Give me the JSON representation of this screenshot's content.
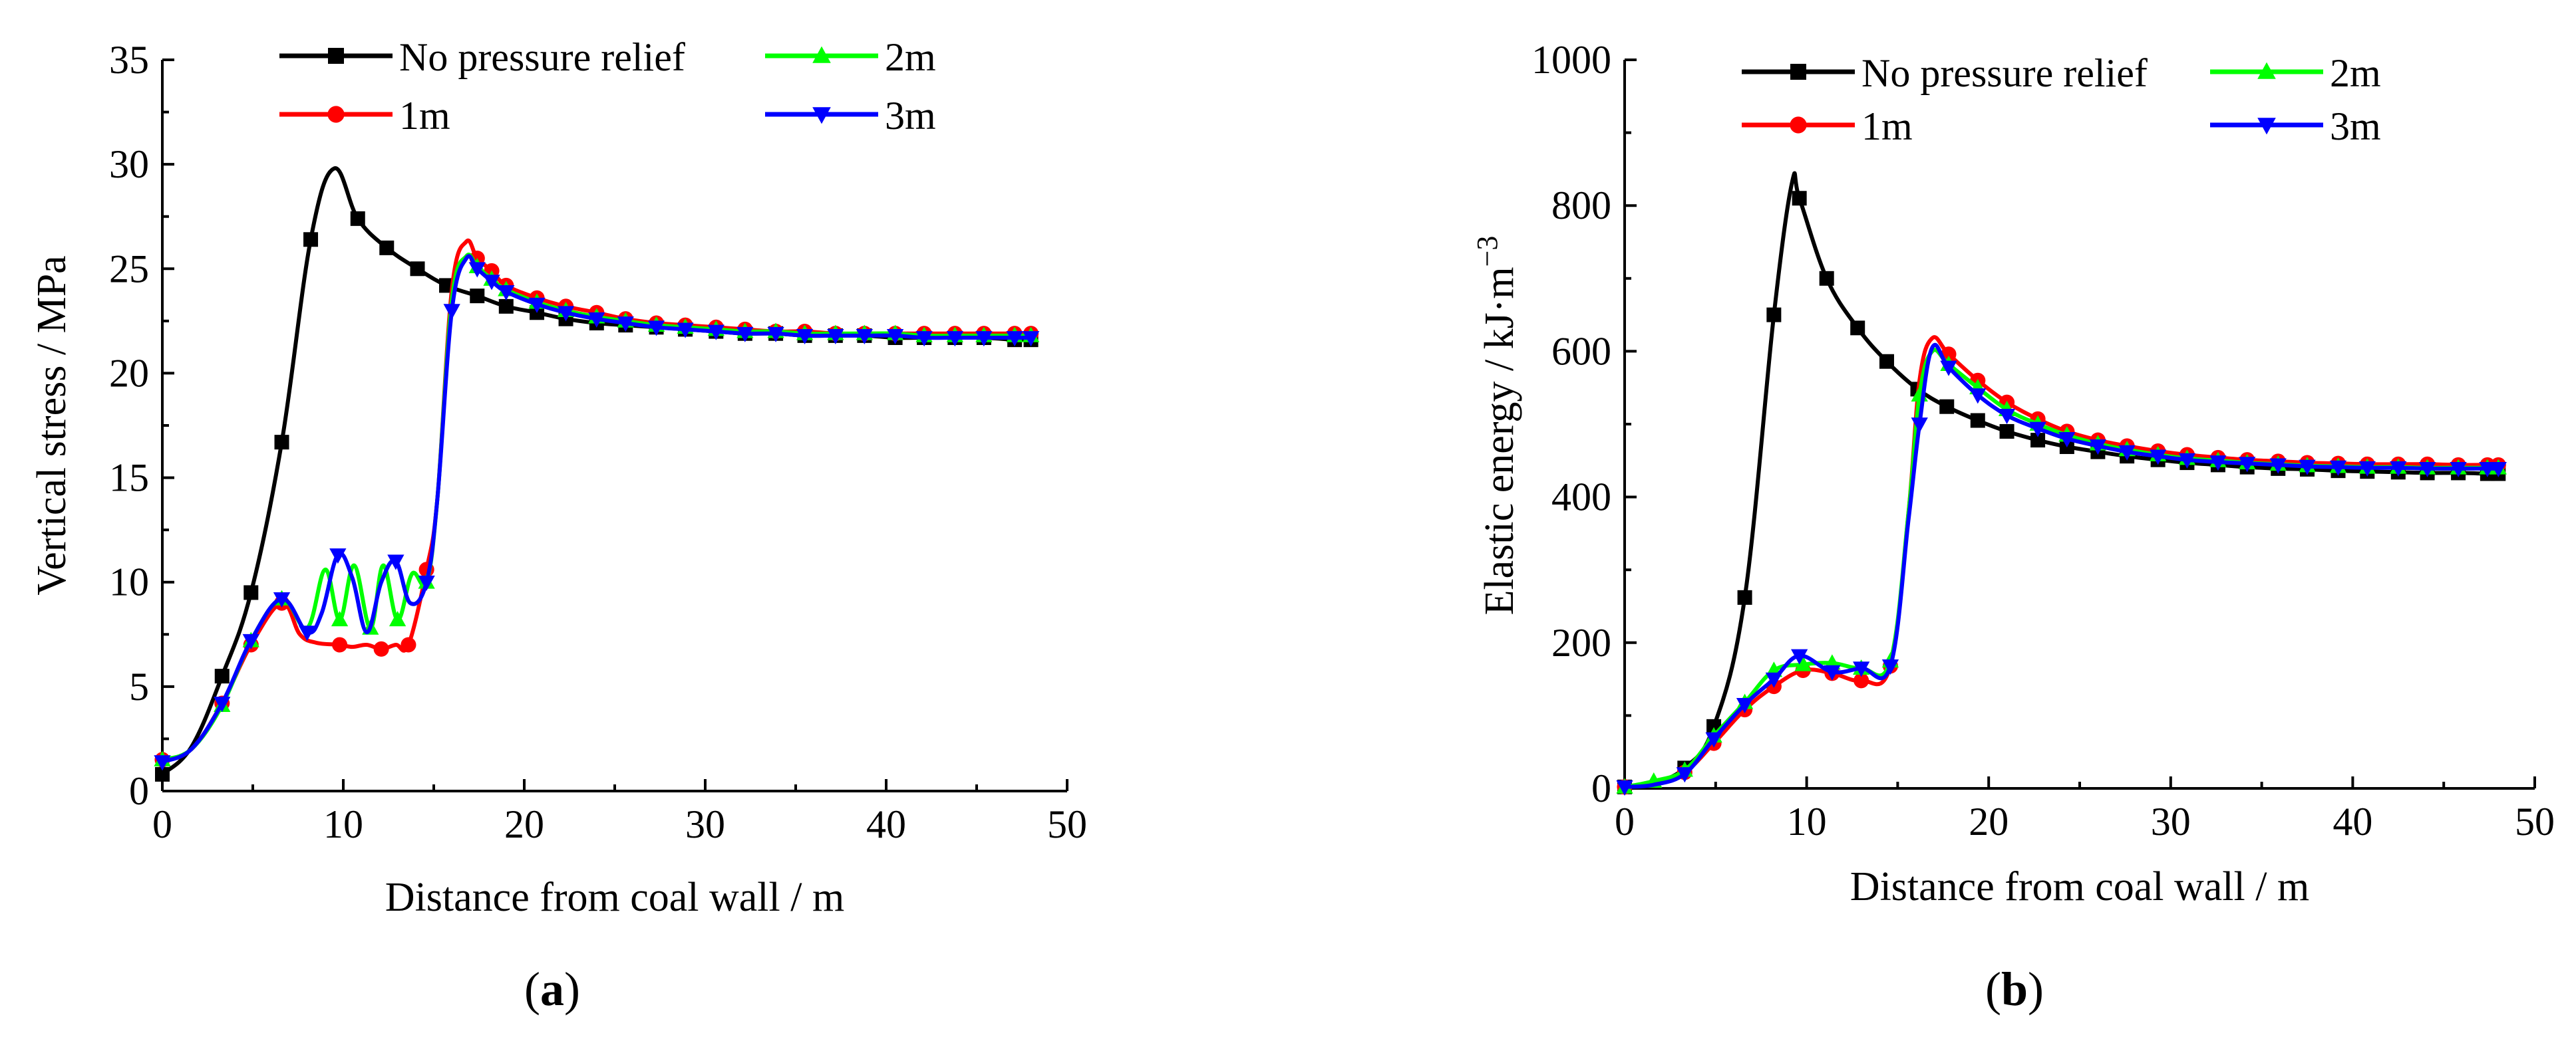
{
  "chart_data": [
    {
      "type": "line",
      "panel_label": "a",
      "xlabel": "Distance from coal wall / m",
      "ylabel": "Vertical stress / MPa",
      "xlim": [
        0,
        50
      ],
      "ylim": [
        0,
        35
      ],
      "xticks": [
        0,
        10,
        20,
        30,
        40,
        50
      ],
      "yticks": [
        0,
        5,
        10,
        15,
        20,
        25,
        30,
        35
      ],
      "legend_position": "top",
      "series": [
        {
          "name": "No pressure relief",
          "color": "#000000",
          "marker": "square",
          "x": [
            0,
            1.6,
            3.3,
            4.9,
            6.6,
            8.2,
            9.5,
            10.8,
            12.4,
            14.1,
            15.7,
            17.4,
            19.0,
            20.7,
            22.3,
            24.0,
            25.6,
            27.3,
            28.9,
            30.6,
            32.2,
            33.9,
            35.5,
            37.2,
            38.8,
            40.5,
            42.1,
            43.8,
            45.4,
            47.1,
            48.0
          ],
          "y": [
            0.8,
            2.1,
            5.5,
            9.5,
            16.7,
            26.4,
            29.8,
            27.4,
            26.0,
            25.0,
            24.2,
            23.7,
            23.2,
            22.9,
            22.6,
            22.4,
            22.3,
            22.2,
            22.1,
            22.0,
            21.9,
            21.9,
            21.8,
            21.8,
            21.8,
            21.7,
            21.7,
            21.7,
            21.7,
            21.6,
            21.6
          ],
          "marker_indices": [
            0,
            2,
            3,
            4,
            5,
            7,
            8,
            9,
            10,
            11,
            12,
            13,
            14,
            15,
            16,
            17,
            18,
            19,
            20,
            21,
            22,
            23,
            24,
            25,
            26,
            27,
            28,
            29,
            30
          ]
        },
        {
          "name": "1m",
          "color": "#ff0000",
          "marker": "circle",
          "x": [
            0,
            1.6,
            3.3,
            4.9,
            6.6,
            7.6,
            8.5,
            9.8,
            10.5,
            11.3,
            12.1,
            12.9,
            13.6,
            14.6,
            15.2,
            16.0,
            16.8,
            17.4,
            18.2,
            19.0,
            20.7,
            22.3,
            24.0,
            25.6,
            27.3,
            28.9,
            30.6,
            32.2,
            33.9,
            35.5,
            37.2,
            38.8,
            40.5,
            42.1,
            43.8,
            45.4,
            47.1,
            48.0
          ],
          "y": [
            1.5,
            2.0,
            4.2,
            7.0,
            9.0,
            7.5,
            7.1,
            7.0,
            6.9,
            7.0,
            6.8,
            7.0,
            7.0,
            10.6,
            14.0,
            24.0,
            26.3,
            25.5,
            24.9,
            24.2,
            23.6,
            23.2,
            22.9,
            22.6,
            22.4,
            22.3,
            22.2,
            22.1,
            22.0,
            22.0,
            21.9,
            21.9,
            21.9,
            21.9,
            21.9,
            21.9,
            21.9,
            21.9
          ],
          "marker_indices": [
            0,
            2,
            3,
            4,
            7,
            10,
            12,
            13,
            17,
            18,
            19,
            20,
            21,
            22,
            23,
            24,
            25,
            26,
            27,
            28,
            29,
            30,
            31,
            32,
            33,
            34,
            35,
            36,
            37
          ]
        },
        {
          "name": "2m",
          "color": "#00ff00",
          "marker": "triangle-up",
          "x": [
            0,
            1.6,
            3.3,
            4.9,
            6.6,
            8.0,
            9.0,
            9.8,
            10.6,
            11.5,
            12.2,
            13.0,
            13.8,
            14.6,
            15.2,
            16.0,
            16.8,
            17.4,
            18.2,
            19.0,
            20.7,
            22.3,
            24.0,
            25.6,
            27.3,
            28.9,
            30.6,
            32.2,
            33.9,
            35.5,
            37.2,
            38.8,
            40.5,
            42.1,
            43.8,
            45.4,
            47.1,
            48.0
          ],
          "y": [
            1.5,
            2.0,
            4.1,
            7.2,
            9.2,
            7.8,
            10.6,
            8.2,
            10.8,
            7.8,
            10.8,
            8.2,
            10.4,
            10.0,
            14.0,
            23.5,
            25.6,
            25.1,
            24.5,
            24.0,
            23.4,
            23.0,
            22.7,
            22.5,
            22.3,
            22.2,
            22.1,
            22.0,
            22.0,
            21.9,
            21.9,
            21.9,
            21.9,
            21.8,
            21.8,
            21.8,
            21.8,
            21.8
          ],
          "marker_indices": [
            0,
            2,
            3,
            4,
            7,
            9,
            11,
            13,
            17,
            18,
            19,
            20,
            21,
            22,
            23,
            24,
            25,
            26,
            27,
            28,
            29,
            30,
            31,
            32,
            33,
            34,
            35,
            36,
            37
          ]
        },
        {
          "name": "3m",
          "color": "#0000ff",
          "marker": "triangle-down",
          "x": [
            0,
            1.6,
            3.3,
            4.9,
            6.6,
            8.0,
            8.8,
            9.7,
            10.5,
            11.3,
            12.1,
            12.9,
            13.7,
            14.6,
            15.2,
            16.0,
            16.8,
            17.4,
            18.2,
            19.0,
            20.7,
            22.3,
            24.0,
            25.6,
            27.3,
            28.9,
            30.6,
            32.2,
            33.9,
            35.5,
            37.2,
            38.8,
            40.5,
            42.1,
            43.8,
            45.4,
            47.1,
            48.0
          ],
          "y": [
            1.4,
            2.0,
            4.2,
            7.2,
            9.2,
            7.6,
            8.5,
            11.3,
            10.2,
            7.6,
            10.0,
            11.0,
            9.0,
            10.0,
            14.0,
            23.0,
            25.5,
            25.0,
            24.4,
            23.9,
            23.3,
            22.9,
            22.6,
            22.4,
            22.2,
            22.1,
            22.0,
            21.9,
            21.9,
            21.8,
            21.8,
            21.8,
            21.8,
            21.7,
            21.7,
            21.7,
            21.7,
            21.7
          ],
          "marker_indices": [
            0,
            2,
            3,
            4,
            5,
            7,
            11,
            13,
            15,
            17,
            18,
            19,
            20,
            21,
            22,
            23,
            24,
            25,
            26,
            27,
            28,
            29,
            30,
            31,
            32,
            33,
            34,
            35,
            36,
            37
          ]
        }
      ]
    },
    {
      "type": "line",
      "panel_label": "b",
      "xlabel": "Distance from coal wall / m",
      "ylabel": "Elastic energy / kJ·m",
      "ylabel_superscript": "−3",
      "xlim": [
        0,
        50
      ],
      "ylim": [
        0,
        1000
      ],
      "xticks": [
        0,
        10,
        20,
        30,
        40,
        50
      ],
      "yticks": [
        0,
        200,
        400,
        600,
        800,
        1000
      ],
      "legend_position": "top",
      "series": [
        {
          "name": "No pressure relief",
          "color": "#000000",
          "marker": "square",
          "x": [
            0,
            1.6,
            3.3,
            4.9,
            6.6,
            8.2,
            9.2,
            9.6,
            11.1,
            12.8,
            14.4,
            16.1,
            17.7,
            19.4,
            21.0,
            22.7,
            24.3,
            26.0,
            27.6,
            29.3,
            30.9,
            32.6,
            34.2,
            35.9,
            37.5,
            39.2,
            40.8,
            42.5,
            44.1,
            45.8,
            47.4,
            48.0
          ],
          "y": [
            2,
            8,
            28,
            85,
            262,
            650,
            832,
            810,
            700,
            632,
            586,
            548,
            524,
            505,
            490,
            478,
            469,
            462,
            456,
            451,
            447,
            444,
            441,
            439,
            438,
            436,
            435,
            434,
            433,
            433,
            432,
            432
          ],
          "marker_indices": [
            0,
            2,
            3,
            4,
            5,
            7,
            8,
            9,
            10,
            11,
            12,
            13,
            14,
            15,
            16,
            17,
            18,
            19,
            20,
            21,
            22,
            23,
            24,
            25,
            26,
            27,
            28,
            29,
            30,
            31
          ]
        },
        {
          "name": "1m",
          "color": "#ff0000",
          "marker": "circle",
          "x": [
            0,
            1.6,
            3.3,
            4.9,
            6.6,
            8.2,
            9.8,
            11.4,
            13.0,
            14.6,
            15.6,
            16.2,
            16.9,
            17.8,
            19.4,
            21.0,
            22.7,
            24.3,
            26.0,
            27.6,
            29.3,
            30.9,
            32.6,
            34.2,
            35.9,
            37.5,
            39.2,
            40.8,
            42.5,
            44.1,
            45.8,
            47.4,
            48.0
          ],
          "y": [
            2,
            6,
            22,
            62,
            108,
            140,
            162,
            158,
            148,
            168,
            380,
            560,
            618,
            596,
            560,
            530,
            507,
            490,
            478,
            470,
            463,
            458,
            454,
            451,
            449,
            447,
            446,
            445,
            445,
            445,
            444,
            444,
            444
          ],
          "marker_indices": [
            0,
            2,
            3,
            4,
            5,
            6,
            7,
            8,
            9,
            13,
            14,
            15,
            16,
            17,
            18,
            19,
            20,
            21,
            22,
            23,
            24,
            25,
            26,
            27,
            28,
            29,
            30,
            31,
            32
          ]
        },
        {
          "name": "2m",
          "color": "#00ff00",
          "marker": "triangle-up",
          "x": [
            0,
            1.6,
            3.3,
            4.9,
            6.6,
            8.2,
            9.8,
            11.4,
            13.0,
            14.6,
            15.6,
            16.2,
            16.9,
            17.8,
            19.4,
            21.0,
            22.7,
            24.3,
            26.0,
            27.6,
            29.3,
            30.9,
            32.6,
            34.2,
            35.9,
            37.5,
            39.2,
            40.8,
            42.5,
            44.1,
            45.8,
            47.4,
            48.0
          ],
          "y": [
            2,
            10,
            25,
            72,
            118,
            162,
            170,
            172,
            165,
            175,
            380,
            540,
            600,
            582,
            550,
            520,
            500,
            485,
            473,
            465,
            458,
            453,
            450,
            447,
            445,
            443,
            442,
            441,
            441,
            440,
            440,
            440,
            440
          ],
          "marker_indices": [
            0,
            1,
            2,
            3,
            4,
            5,
            6,
            7,
            8,
            9,
            11,
            13,
            14,
            15,
            16,
            17,
            18,
            19,
            20,
            21,
            22,
            23,
            24,
            25,
            26,
            27,
            28,
            29,
            30,
            31,
            32
          ]
        },
        {
          "name": "3m",
          "color": "#0000ff",
          "marker": "triangle-down",
          "x": [
            0,
            1.6,
            3.3,
            4.9,
            6.6,
            8.2,
            9.6,
            11.4,
            13.0,
            14.6,
            15.6,
            16.2,
            16.9,
            17.8,
            19.4,
            21.0,
            22.7,
            24.3,
            26.0,
            27.6,
            29.3,
            30.9,
            32.6,
            34.2,
            35.9,
            37.5,
            39.2,
            40.8,
            42.5,
            44.1,
            45.8,
            47.4,
            48.0
          ],
          "y": [
            2,
            5,
            20,
            68,
            115,
            150,
            182,
            160,
            165,
            168,
            370,
            500,
            605,
            578,
            540,
            512,
            494,
            480,
            470,
            462,
            456,
            451,
            448,
            446,
            444,
            442,
            441,
            440,
            440,
            439,
            439,
            439,
            439
          ],
          "marker_indices": [
            0,
            2,
            3,
            4,
            5,
            6,
            7,
            8,
            9,
            11,
            13,
            14,
            15,
            16,
            17,
            18,
            19,
            20,
            21,
            22,
            23,
            24,
            25,
            26,
            27,
            28,
            29,
            30,
            31,
            32
          ]
        }
      ]
    }
  ]
}
